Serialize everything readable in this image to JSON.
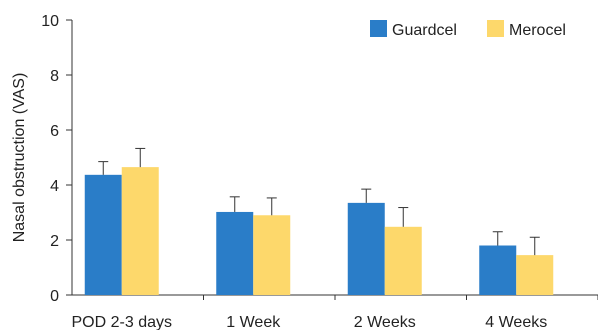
{
  "chart_data": {
    "type": "bar",
    "categories": [
      "POD 2-3 days",
      "1 Week",
      "2 Weeks",
      "4 Weeks"
    ],
    "series": [
      {
        "name": "Guardcel",
        "color": "#2A7DC8",
        "values": [
          4.37,
          3.02,
          3.35,
          1.8
        ],
        "errors": [
          0.48,
          0.55,
          0.5,
          0.5
        ]
      },
      {
        "name": "Merocel",
        "color": "#FDD86B",
        "values": [
          4.65,
          2.9,
          2.48,
          1.45
        ],
        "errors": [
          0.68,
          0.63,
          0.7,
          0.65
        ]
      }
    ],
    "ylabel": "Nasal obstruction (VAS)",
    "xlabel": "",
    "ylim": [
      0,
      10
    ],
    "yticks": [
      0,
      2,
      4,
      6,
      8,
      10
    ],
    "legend_position": "top-right",
    "grid": false
  }
}
